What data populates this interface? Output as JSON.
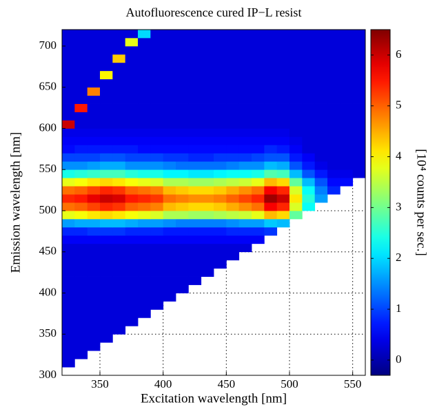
{
  "chart_data": {
    "type": "heatmap",
    "title": "Autofluorescence cured IP−L resist",
    "x_label": "Excitation wavelength [nm]",
    "y_label": "Emission wavelength [nm]",
    "colorbar_label": "[10⁴ counts per sec.]",
    "colormap": "jet",
    "grid": true,
    "xlim": [
      320,
      560
    ],
    "ylim": [
      300,
      720
    ],
    "xticks": [
      350,
      400,
      450,
      500,
      550
    ],
    "yticks": [
      300,
      350,
      400,
      450,
      500,
      550,
      600,
      650,
      700
    ],
    "clim": [
      -0.3,
      6.5
    ],
    "cticks": [
      0,
      1,
      2,
      3,
      4,
      5,
      6
    ],
    "x": [
      325,
      335,
      345,
      355,
      365,
      375,
      385,
      395,
      405,
      415,
      425,
      435,
      445,
      455,
      465,
      475,
      485,
      495,
      505,
      515,
      525,
      535,
      545,
      555
    ],
    "y": [
      315,
      325,
      335,
      345,
      355,
      365,
      375,
      385,
      395,
      405,
      415,
      425,
      435,
      445,
      455,
      465,
      475,
      485,
      495,
      505,
      515,
      525,
      535,
      545,
      555,
      565,
      575,
      585,
      595,
      605,
      615,
      625,
      635,
      645,
      655,
      665,
      675,
      685,
      695,
      705,
      715
    ],
    "z": [
      [
        0.3,
        null,
        null,
        null,
        null,
        null,
        null,
        null,
        null,
        null,
        null,
        null,
        null,
        null,
        null,
        null,
        null,
        null,
        null,
        null,
        null,
        null,
        null,
        null
      ],
      [
        0.3,
        0.3,
        null,
        null,
        null,
        null,
        null,
        null,
        null,
        null,
        null,
        null,
        null,
        null,
        null,
        null,
        null,
        null,
        null,
        null,
        null,
        null,
        null,
        null
      ],
      [
        0.3,
        0.3,
        0.3,
        null,
        null,
        null,
        null,
        null,
        null,
        null,
        null,
        null,
        null,
        null,
        null,
        null,
        null,
        null,
        null,
        null,
        null,
        null,
        null,
        null
      ],
      [
        0.3,
        0.3,
        0.3,
        0.3,
        null,
        null,
        null,
        null,
        null,
        null,
        null,
        null,
        null,
        null,
        null,
        null,
        null,
        null,
        null,
        null,
        null,
        null,
        null,
        null
      ],
      [
        0.3,
        0.3,
        0.3,
        0.3,
        0.3,
        null,
        null,
        null,
        null,
        null,
        null,
        null,
        null,
        null,
        null,
        null,
        null,
        null,
        null,
        null,
        null,
        null,
        null,
        null
      ],
      [
        0.3,
        0.3,
        0.3,
        0.3,
        0.3,
        0.3,
        null,
        null,
        null,
        null,
        null,
        null,
        null,
        null,
        null,
        null,
        null,
        null,
        null,
        null,
        null,
        null,
        null,
        null
      ],
      [
        0.3,
        0.3,
        0.3,
        0.3,
        0.3,
        0.3,
        0.3,
        null,
        null,
        null,
        null,
        null,
        null,
        null,
        null,
        null,
        null,
        null,
        null,
        null,
        null,
        null,
        null,
        null
      ],
      [
        0.3,
        0.3,
        0.3,
        0.3,
        0.3,
        0.3,
        0.3,
        0.3,
        null,
        null,
        null,
        null,
        null,
        null,
        null,
        null,
        null,
        null,
        null,
        null,
        null,
        null,
        null,
        null
      ],
      [
        0.3,
        0.3,
        0.3,
        0.3,
        0.3,
        0.3,
        0.3,
        0.3,
        0.3,
        null,
        null,
        null,
        null,
        null,
        null,
        null,
        null,
        null,
        null,
        null,
        null,
        null,
        null,
        null
      ],
      [
        0.3,
        0.3,
        0.3,
        0.3,
        0.3,
        0.3,
        0.3,
        0.3,
        0.3,
        0.3,
        null,
        null,
        null,
        null,
        null,
        null,
        null,
        null,
        null,
        null,
        null,
        null,
        null,
        null
      ],
      [
        0.3,
        0.3,
        0.3,
        0.3,
        0.3,
        0.3,
        0.3,
        0.3,
        0.3,
        0.3,
        0.3,
        null,
        null,
        null,
        null,
        null,
        null,
        null,
        null,
        null,
        null,
        null,
        null,
        null
      ],
      [
        0.3,
        0.3,
        0.3,
        0.3,
        0.3,
        0.3,
        0.3,
        0.3,
        0.3,
        0.3,
        0.3,
        0.3,
        null,
        null,
        null,
        null,
        null,
        null,
        null,
        null,
        null,
        null,
        null,
        null
      ],
      [
        0.3,
        0.3,
        0.3,
        0.3,
        0.3,
        0.3,
        0.3,
        0.3,
        0.3,
        0.3,
        0.3,
        0.3,
        0.3,
        null,
        null,
        null,
        null,
        null,
        null,
        null,
        null,
        null,
        null,
        null
      ],
      [
        0.3,
        0.3,
        0.3,
        0.3,
        0.3,
        0.3,
        0.3,
        0.3,
        0.3,
        0.3,
        0.3,
        0.3,
        0.3,
        0.3,
        null,
        null,
        null,
        null,
        null,
        null,
        null,
        null,
        null,
        null
      ],
      [
        0.3,
        0.3,
        0.3,
        0.3,
        0.3,
        0.3,
        0.3,
        0.3,
        0.3,
        0.3,
        0.3,
        0.3,
        0.3,
        0.3,
        0.3,
        null,
        null,
        null,
        null,
        null,
        null,
        null,
        null,
        null
      ],
      [
        0.5,
        0.5,
        0.5,
        0.5,
        0.5,
        0.5,
        0.5,
        0.5,
        0.5,
        0.5,
        0.5,
        0.5,
        0.5,
        0.5,
        0.5,
        0.5,
        null,
        null,
        null,
        null,
        null,
        null,
        null,
        null
      ],
      [
        0.8,
        0.8,
        0.9,
        0.9,
        0.9,
        0.8,
        0.8,
        0.8,
        0.7,
        0.7,
        0.7,
        0.7,
        0.7,
        0.8,
        0.8,
        0.8,
        0.9,
        null,
        null,
        null,
        null,
        null,
        null,
        null
      ],
      [
        1.6,
        1.7,
        1.7,
        1.8,
        1.8,
        1.7,
        1.6,
        1.6,
        1.5,
        1.4,
        1.4,
        1.4,
        1.4,
        1.5,
        1.6,
        1.6,
        1.9,
        1.8,
        null,
        null,
        null,
        null,
        null,
        null
      ],
      [
        3.8,
        3.9,
        4.1,
        4.2,
        4.1,
        3.9,
        3.8,
        3.7,
        3.4,
        3.4,
        3.3,
        3.3,
        3.4,
        3.5,
        3.6,
        3.8,
        4.4,
        4.2,
        2.9,
        null,
        null,
        null,
        null,
        null
      ],
      [
        4.9,
        5.0,
        5.2,
        5.4,
        5.3,
        5.0,
        4.9,
        4.8,
        4.4,
        4.3,
        4.2,
        4.2,
        4.3,
        4.5,
        4.7,
        4.9,
        5.7,
        5.4,
        3.7,
        2.3,
        null,
        null,
        null,
        null
      ],
      [
        5.4,
        5.5,
        5.8,
        6.0,
        5.9,
        5.5,
        5.4,
        5.3,
        4.9,
        4.8,
        4.7,
        4.7,
        4.8,
        5.0,
        5.2,
        5.4,
        6.3,
        6.0,
        4.1,
        2.5,
        1.6,
        null,
        null,
        null
      ],
      [
        4.9,
        5.0,
        5.2,
        5.4,
        5.3,
        5.0,
        4.9,
        4.8,
        4.4,
        4.3,
        4.2,
        4.2,
        4.3,
        4.5,
        4.7,
        4.9,
        5.7,
        5.4,
        3.7,
        2.3,
        1.4,
        0.8,
        null,
        null
      ],
      [
        3.8,
        3.9,
        4.1,
        4.2,
        4.1,
        3.9,
        3.8,
        3.7,
        3.4,
        3.4,
        3.3,
        3.3,
        3.4,
        3.5,
        3.6,
        3.8,
        4.4,
        4.2,
        2.9,
        1.8,
        1.1,
        0.6,
        0.6,
        null
      ],
      [
        2.4,
        2.5,
        2.6,
        2.7,
        2.7,
        2.5,
        2.4,
        2.4,
        2.2,
        2.2,
        2.1,
        2.1,
        2.2,
        2.3,
        2.3,
        2.4,
        2.8,
        2.7,
        1.8,
        1.1,
        0.7,
        0.4,
        0.4,
        0.3
      ],
      [
        1.5,
        1.5,
        1.6,
        1.7,
        1.7,
        1.5,
        1.5,
        1.5,
        1.4,
        1.3,
        1.3,
        1.3,
        1.3,
        1.4,
        1.5,
        1.5,
        1.8,
        1.7,
        1.1,
        0.7,
        0.4,
        0.3,
        0.3,
        0.3
      ],
      [
        1.0,
        1.0,
        1.0,
        1.1,
        1.1,
        1.0,
        1.0,
        1.0,
        0.9,
        0.9,
        0.8,
        0.8,
        0.9,
        0.9,
        0.9,
        1.0,
        1.1,
        1.1,
        0.7,
        0.5,
        0.3,
        0.3,
        0.3,
        0.3
      ],
      [
        0.6,
        0.7,
        0.7,
        0.7,
        0.7,
        0.7,
        0.6,
        0.6,
        0.6,
        0.6,
        0.6,
        0.6,
        0.6,
        0.6,
        0.6,
        0.6,
        0.8,
        0.7,
        0.5,
        0.3,
        0.3,
        0.3,
        0.3,
        0.3
      ],
      [
        0.5,
        0.5,
        0.5,
        0.5,
        0.5,
        0.5,
        0.5,
        0.5,
        0.5,
        0.5,
        0.5,
        0.5,
        0.5,
        0.5,
        0.5,
        0.5,
        0.5,
        0.5,
        0.4,
        0.3,
        0.3,
        0.3,
        0.3,
        0.3
      ],
      [
        0.4,
        0.4,
        0.4,
        0.4,
        0.4,
        0.4,
        0.4,
        0.4,
        0.4,
        0.4,
        0.4,
        0.4,
        0.4,
        0.4,
        0.4,
        0.4,
        0.4,
        0.4,
        0.3,
        0.3,
        0.3,
        0.3,
        0.3,
        0.3
      ],
      [
        6.0,
        0.3,
        0.3,
        0.3,
        0.3,
        0.3,
        0.3,
        0.3,
        0.3,
        0.3,
        0.3,
        0.3,
        0.3,
        0.3,
        0.3,
        0.3,
        0.3,
        0.3,
        0.3,
        0.3,
        0.3,
        0.3,
        0.3,
        0.3
      ],
      [
        0.3,
        0.3,
        0.3,
        0.3,
        0.3,
        0.3,
        0.3,
        0.3,
        0.3,
        0.3,
        0.3,
        0.3,
        0.3,
        0.3,
        0.3,
        0.3,
        0.3,
        0.3,
        0.3,
        0.3,
        0.3,
        0.3,
        0.3,
        0.3
      ],
      [
        0.3,
        5.5,
        0.3,
        0.3,
        0.3,
        0.3,
        0.3,
        0.3,
        0.3,
        0.3,
        0.3,
        0.3,
        0.3,
        0.3,
        0.3,
        0.3,
        0.3,
        0.3,
        0.3,
        0.3,
        0.3,
        0.3,
        0.3,
        0.3
      ],
      [
        0.3,
        0.3,
        0.3,
        0.3,
        0.3,
        0.3,
        0.3,
        0.3,
        0.3,
        0.3,
        0.3,
        0.3,
        0.3,
        0.3,
        0.3,
        0.3,
        0.3,
        0.3,
        0.3,
        0.3,
        0.3,
        0.3,
        0.3,
        0.3
      ],
      [
        0.3,
        0.3,
        4.8,
        0.3,
        0.3,
        0.3,
        0.3,
        0.3,
        0.3,
        0.3,
        0.3,
        0.3,
        0.3,
        0.3,
        0.3,
        0.3,
        0.3,
        0.3,
        0.3,
        0.3,
        0.3,
        0.3,
        0.3,
        0.3
      ],
      [
        0.3,
        0.3,
        0.3,
        0.3,
        0.3,
        0.3,
        0.3,
        0.3,
        0.3,
        0.3,
        0.3,
        0.3,
        0.3,
        0.3,
        0.3,
        0.3,
        0.3,
        0.3,
        0.3,
        0.3,
        0.3,
        0.3,
        0.3,
        0.3
      ],
      [
        0.3,
        0.3,
        0.3,
        4.0,
        0.3,
        0.3,
        0.3,
        0.3,
        0.3,
        0.3,
        0.3,
        0.3,
        0.3,
        0.3,
        0.3,
        0.3,
        0.3,
        0.3,
        0.3,
        0.3,
        0.3,
        0.3,
        0.3,
        0.3
      ],
      [
        0.3,
        0.3,
        0.3,
        0.3,
        0.3,
        0.3,
        0.3,
        0.3,
        0.3,
        0.3,
        0.3,
        0.3,
        0.3,
        0.3,
        0.3,
        0.3,
        0.3,
        0.3,
        0.3,
        0.3,
        0.3,
        0.3,
        0.3,
        0.3
      ],
      [
        0.3,
        0.3,
        0.3,
        0.3,
        4.3,
        0.3,
        0.3,
        0.3,
        0.3,
        0.3,
        0.3,
        0.3,
        0.3,
        0.3,
        0.3,
        0.3,
        0.3,
        0.3,
        0.3,
        0.3,
        0.3,
        0.3,
        0.3,
        0.3
      ],
      [
        0.3,
        0.3,
        0.3,
        0.3,
        0.3,
        0.3,
        0.3,
        0.3,
        0.3,
        0.3,
        0.3,
        0.3,
        0.3,
        0.3,
        0.3,
        0.3,
        0.3,
        0.3,
        0.3,
        0.3,
        0.3,
        0.3,
        0.3,
        0.3
      ],
      [
        0.3,
        0.3,
        0.3,
        0.3,
        0.3,
        3.8,
        0.3,
        0.3,
        0.3,
        0.3,
        0.3,
        0.3,
        0.3,
        0.3,
        0.3,
        0.3,
        0.3,
        0.3,
        0.3,
        0.3,
        0.3,
        0.3,
        0.3,
        0.3
      ],
      [
        0.3,
        0.3,
        0.3,
        0.3,
        0.3,
        0.3,
        2.0,
        0.3,
        0.3,
        0.3,
        0.3,
        0.3,
        0.3,
        0.3,
        0.3,
        0.3,
        0.3,
        0.3,
        0.3,
        0.3,
        0.3,
        0.3,
        0.3,
        0.3
      ]
    ]
  }
}
